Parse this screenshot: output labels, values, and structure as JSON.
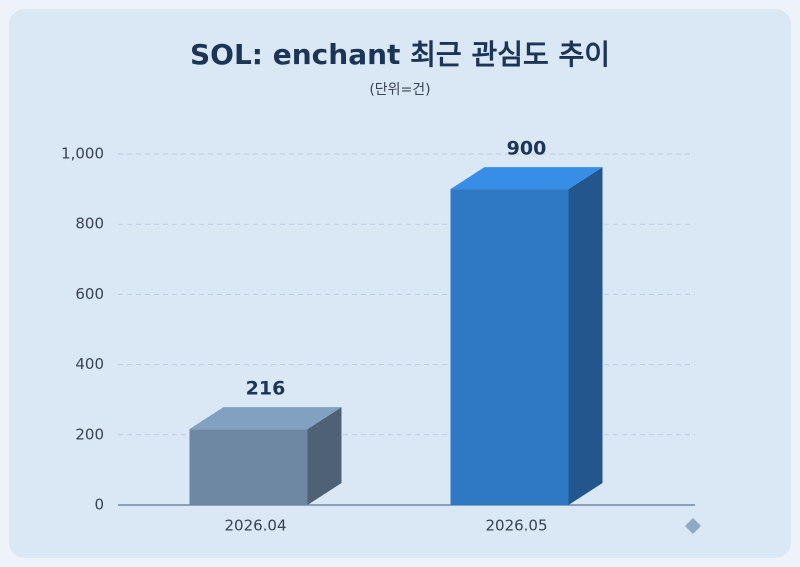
{
  "chart_data": {
    "type": "bar3d",
    "title": "SOL: enchant 최근 관심도 추이",
    "subtitle": "(단위=건)",
    "categories": [
      "2026.04",
      "2026.05"
    ],
    "values": [
      216,
      900
    ],
    "colors": [
      "#6e88a3",
      "#2f78c4"
    ],
    "ylim": [
      0,
      1000
    ],
    "yticks": [
      0,
      200,
      400,
      600,
      800,
      {
        "value": 1000,
        "label": "1,000"
      }
    ],
    "grid": true
  }
}
